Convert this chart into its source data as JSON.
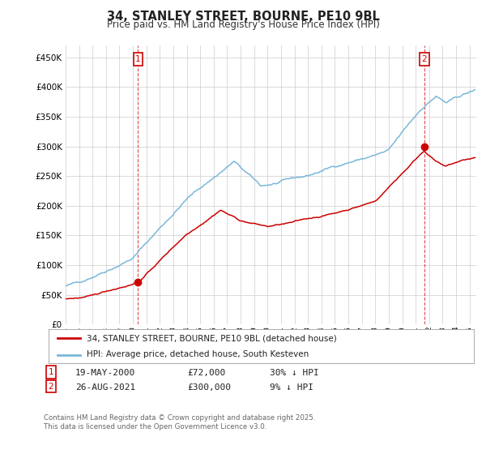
{
  "title": "34, STANLEY STREET, BOURNE, PE10 9BL",
  "subtitle": "Price paid vs. HM Land Registry's House Price Index (HPI)",
  "ylim": [
    0,
    470000
  ],
  "yticks": [
    0,
    50000,
    100000,
    150000,
    200000,
    250000,
    300000,
    350000,
    400000,
    450000
  ],
  "hpi_color": "#7ab8d9",
  "price_color": "#cc0000",
  "marker1_x": 2000.38,
  "marker1_y": 72000,
  "marker2_x": 2021.65,
  "marker2_y": 300000,
  "legend_line1": "34, STANLEY STREET, BOURNE, PE10 9BL (detached house)",
  "legend_line2": "HPI: Average price, detached house, South Kesteven",
  "ann1_date": "19-MAY-2000",
  "ann1_price": "£72,000",
  "ann1_hpi": "30% ↓ HPI",
  "ann2_date": "26-AUG-2021",
  "ann2_price": "£300,000",
  "ann2_hpi": "9% ↓ HPI",
  "footnote1": "Contains HM Land Registry data © Crown copyright and database right 2025.",
  "footnote2": "This data is licensed under the Open Government Licence v3.0.",
  "background_color": "#ffffff",
  "grid_color": "#cccccc",
  "xlim_left": 1995,
  "xlim_right": 2025.5
}
